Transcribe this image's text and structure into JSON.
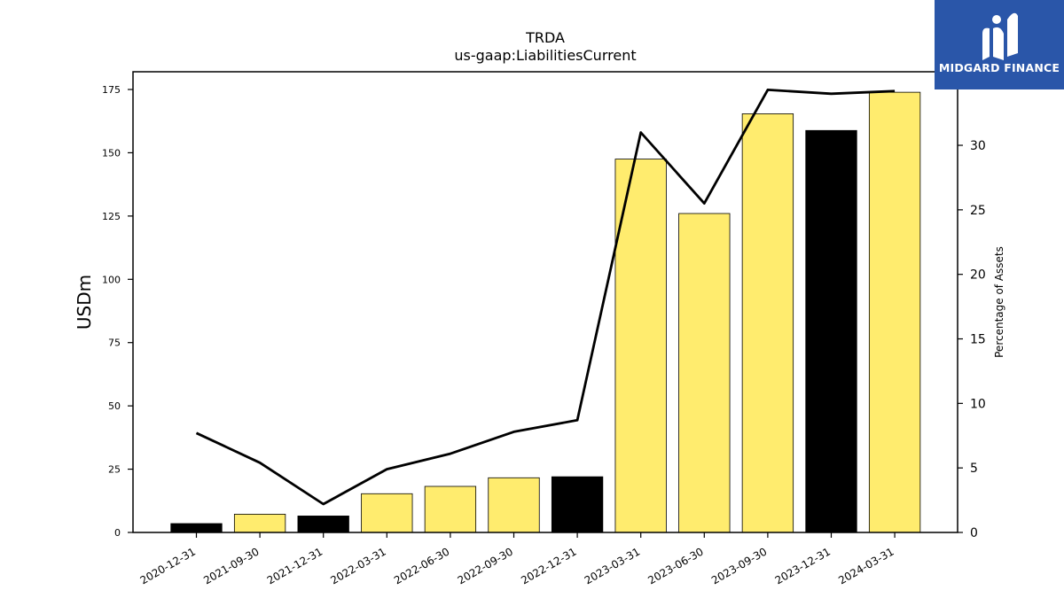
{
  "chart_data": {
    "type": "bar",
    "title": "TRDA",
    "subtitle": "us-gaap:LiabilitiesCurrent",
    "ylabel": "USDm",
    "y2label": "Percentage of Assets",
    "ylim": [
      0,
      182
    ],
    "y2lim": [
      0,
      35.7
    ],
    "yticks": [
      0,
      25,
      50,
      75,
      100,
      125,
      150,
      175
    ],
    "y2ticks": [
      0,
      5,
      10,
      15,
      20,
      25,
      30
    ],
    "categories": [
      "2020-12-31",
      "2021-09-30",
      "2021-12-31",
      "2022-03-31",
      "2022-06-30",
      "2022-09-30",
      "2022-12-31",
      "2023-03-31",
      "2023-06-30",
      "2023-09-30",
      "2023-12-31",
      "2024-03-31"
    ],
    "series": [
      {
        "type": "bar",
        "axis": "left",
        "values": [
          3.5,
          7.2,
          6.5,
          15.3,
          18.2,
          21.6,
          22.0,
          147.5,
          126.0,
          165.4,
          158.8,
          173.9
        ],
        "colors": [
          "#000000",
          "#ffec6e",
          "#000000",
          "#ffec6e",
          "#ffec6e",
          "#ffec6e",
          "#000000",
          "#ffec6e",
          "#ffec6e",
          "#ffec6e",
          "#000000",
          "#ffec6e"
        ]
      },
      {
        "type": "line",
        "axis": "right",
        "values": [
          7.7,
          5.4,
          2.2,
          4.9,
          6.1,
          7.8,
          8.7,
          31.0,
          25.5,
          34.3,
          34.0,
          34.2
        ],
        "color": "#000000"
      }
    ],
    "grid": false
  },
  "logo": {
    "text": "MIDGARD FINANCE",
    "background": "#2a56a9"
  }
}
